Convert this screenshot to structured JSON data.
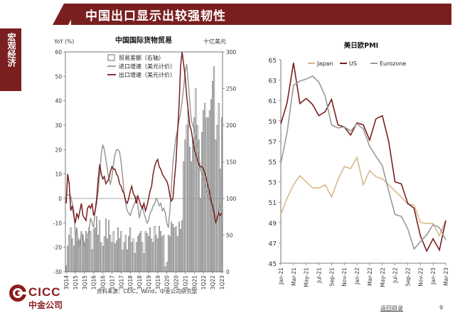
{
  "header": {
    "title": "中国出口显示出较强韧性"
  },
  "side": {
    "label": "宏观经济"
  },
  "footer": {
    "source": "资料来源：CEIC，Wind，中金公司研究部",
    "nav": "返回目录",
    "page": "9"
  },
  "logo": {
    "en": "CICC",
    "cn": "中金公司"
  },
  "colors": {
    "brand": "#7a1f1f",
    "bar": "#ffffff",
    "barEdge": "#333333",
    "importLine": "#999999",
    "exportLine": "#7a1f1f",
    "japan": "#d8b98a",
    "us": "#7a1f1f",
    "euro": "#999999"
  },
  "chart_data": [
    {
      "type": "bar",
      "title": "中国国际货物贸易",
      "ylabel_left": "YoY (%)",
      "ylabel_right": "十亿美元",
      "ylim_left": [
        -30,
        60
      ],
      "ylim_right": [
        0,
        300
      ],
      "yticks_left": [
        "60",
        "50",
        "40",
        "30",
        "20",
        "10",
        "0",
        "-10",
        "-20",
        "-30"
      ],
      "yticks_right": [
        "300",
        "250",
        "200",
        "150",
        "100",
        "50",
        "0"
      ],
      "xticks": [
        "3Q14",
        "1Q15",
        "3Q15",
        "1Q16",
        "3Q16",
        "1Q17",
        "3Q17",
        "1Q18",
        "3Q18",
        "1Q19",
        "3Q19",
        "1Q20",
        "3Q20",
        "1Q21",
        "3Q21",
        "1Q22",
        "3Q22",
        "1Q23"
      ],
      "xtick_positions": [
        0,
        6,
        12,
        18,
        24,
        30,
        36,
        42,
        48,
        54,
        60,
        66,
        72,
        78,
        84,
        90,
        96,
        102
      ],
      "series": [
        {
          "name": "贸易差额（右轴）",
          "kind": "bar",
          "values": [
            8,
            35,
            50,
            60,
            45,
            35,
            55,
            60,
            45,
            42,
            55,
            50,
            40,
            55,
            45,
            60,
            55,
            30,
            58,
            60,
            75,
            50,
            70,
            40,
            35,
            48,
            72,
            45,
            70,
            50,
            40,
            55,
            38,
            42,
            60,
            45,
            55,
            30,
            40,
            50,
            30,
            48,
            60,
            40,
            45,
            25,
            40,
            48,
            52,
            55,
            40,
            25,
            55,
            52,
            48,
            60,
            45,
            40,
            62,
            50,
            45,
            62,
            55,
            48,
            50,
            7,
            13,
            50,
            48,
            68,
            65,
            60,
            62,
            48,
            68,
            58,
            70,
            150,
            180,
            200,
            220,
            170,
            150,
            180,
            210,
            250,
            200,
            180,
            100,
            190,
            220,
            230,
            210,
            210,
            220,
            235,
            260,
            280,
            180,
            200,
            230,
            140,
            210
          ]
        },
        {
          "name": "进口增速（美元计价）",
          "kind": "line",
          "values": [
            1.5,
            1.5,
            1.5,
            1,
            -2,
            -5,
            -15,
            -12,
            -20,
            -18,
            -14,
            -16,
            -19,
            -17,
            -15,
            -13,
            -8,
            -10,
            -12,
            -5,
            -2,
            3,
            10,
            18,
            22,
            20,
            16,
            12,
            8,
            6,
            9,
            14,
            18,
            20,
            20,
            19,
            15,
            9,
            2,
            -2,
            -5,
            -6,
            -7,
            -5,
            -3,
            -2,
            1,
            -3,
            -8,
            -5,
            -3,
            -6,
            -8,
            -10,
            -9,
            -6,
            -5,
            -3,
            -2,
            0,
            -1,
            -3,
            -2,
            -5,
            -4,
            -6,
            -10,
            -12,
            -5,
            5,
            15,
            20,
            25,
            28,
            32,
            35,
            40,
            45,
            52,
            55,
            48,
            40,
            32,
            30,
            28,
            25,
            22,
            18,
            12,
            10,
            8,
            5,
            3,
            1,
            0,
            -2,
            -4,
            -8,
            -10,
            -8,
            -5,
            -3,
            -5
          ]
        },
        {
          "name": "出口增速（美元计价）",
          "kind": "line",
          "values": [
            -2,
            10,
            6,
            -5,
            -3,
            -7,
            -10,
            -6,
            -8,
            -5,
            -2,
            -7,
            -8,
            -9,
            -4,
            -3,
            -4,
            -2,
            -7,
            -5,
            0,
            8,
            14,
            10,
            8,
            9,
            6,
            7,
            8,
            11,
            13,
            12,
            12,
            10,
            9,
            6,
            5,
            3,
            2,
            -1,
            -2,
            0,
            3,
            5,
            2,
            1,
            -2,
            1,
            -1,
            -3,
            -4,
            -2,
            -5,
            -3,
            0,
            3,
            5,
            10,
            13,
            15,
            16,
            13,
            12,
            10,
            9,
            8,
            7,
            5,
            1,
            -1,
            0,
            8,
            15,
            27,
            38,
            54,
            60,
            55,
            50,
            42,
            36,
            30,
            28,
            24,
            20,
            18,
            16,
            14,
            13,
            13,
            12,
            10,
            8,
            5,
            3,
            -1,
            -3,
            -6,
            -10,
            -8,
            -6,
            -7,
            -6
          ]
        }
      ]
    },
    {
      "type": "line",
      "title": "美日欧PMI",
      "ylim": [
        45,
        65
      ],
      "yticks": [
        "65",
        "63",
        "61",
        "59",
        "57",
        "55",
        "53",
        "51",
        "49",
        "47",
        "45"
      ],
      "xticks": [
        "Jan-21",
        "Mar-21",
        "May-21",
        "Jul-21",
        "Sep-21",
        "Nov-21",
        "Jan-22",
        "Mar-22",
        "May-22",
        "Jul-22",
        "Sep-22",
        "Nov-22",
        "Jan-23",
        "Mar-23"
      ],
      "series": [
        {
          "name": "Japan",
          "values": [
            49.8,
            51.4,
            52.7,
            53.6,
            53.0,
            52.4,
            52.4,
            52.7,
            51.5,
            53.2,
            54.5,
            54.3,
            55.4,
            52.7,
            54.1,
            53.5,
            53.3,
            52.7,
            52.1,
            51.5,
            50.8,
            50.7,
            49.0,
            48.9,
            48.9,
            47.7,
            49.2
          ]
        },
        {
          "name": "US",
          "values": [
            58.7,
            60.8,
            64.7,
            60.7,
            61.2,
            60.6,
            59.5,
            59.9,
            61.1,
            58.6,
            58.4,
            57.6,
            58.8,
            58.6,
            57.1,
            59.2,
            59.5,
            57.0,
            53.0,
            52.8,
            50.9,
            50.4,
            47.7,
            46.2,
            47.4,
            46.3,
            49.2
          ]
        },
        {
          "name": "Eurozone",
          "values": [
            54.8,
            57.9,
            62.5,
            62.9,
            63.1,
            63.4,
            62.8,
            61.4,
            58.6,
            58.3,
            58.4,
            58.0,
            58.7,
            58.2,
            56.5,
            55.5,
            54.6,
            52.1,
            49.8,
            49.6,
            48.4,
            46.4,
            47.1,
            47.8,
            48.8,
            48.5,
            47.3
          ]
        }
      ]
    }
  ]
}
